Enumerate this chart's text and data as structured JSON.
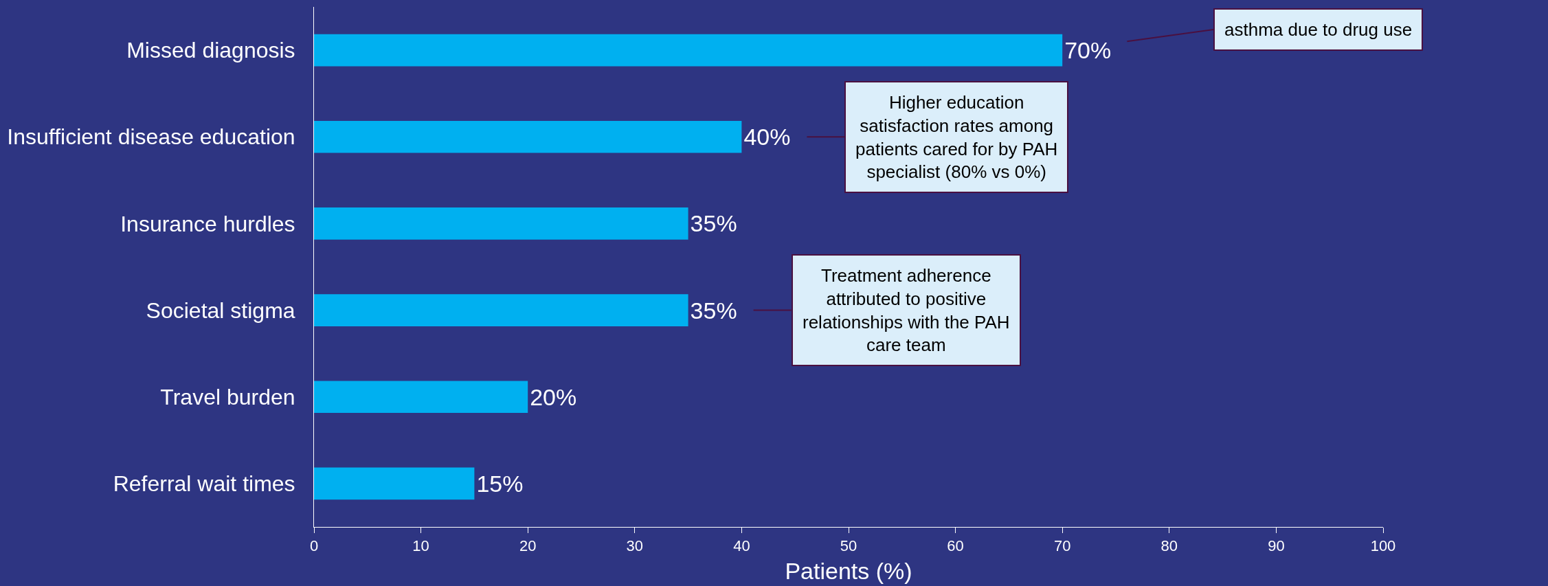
{
  "chart_data": {
    "type": "bar",
    "orientation": "horizontal",
    "categories": [
      "Missed diagnosis",
      "Insufficient disease education",
      "Insurance hurdles",
      "Societal stigma",
      "Travel burden",
      "Referral wait times"
    ],
    "values": [
      70,
      40,
      35,
      35,
      20,
      15
    ],
    "color": "#00b0f0",
    "value_labels": [
      "70%",
      "40%",
      "35%",
      "35%",
      "20%",
      "15%"
    ],
    "xlabel": "Patients (%)",
    "xlim": [
      0,
      100
    ],
    "xticks": [
      0,
      10,
      20,
      30,
      40,
      50,
      60,
      70,
      80,
      90,
      100
    ],
    "grid": false,
    "annotations": [
      {
        "text": "asthma due to drug use",
        "x": 70,
        "y": "Missed diagnosis"
      },
      {
        "text": "Higher education\nsatisfaction rates among\npatients cared for by PAH\nspecialist (80% vs 0%)",
        "x": 40,
        "y": "Insufficient disease education"
      },
      {
        "text": "Treatment adherence\nattributed to positive\nrelationships with the PAH\ncare team",
        "x": 35,
        "y": "Societal stigma"
      }
    ]
  }
}
